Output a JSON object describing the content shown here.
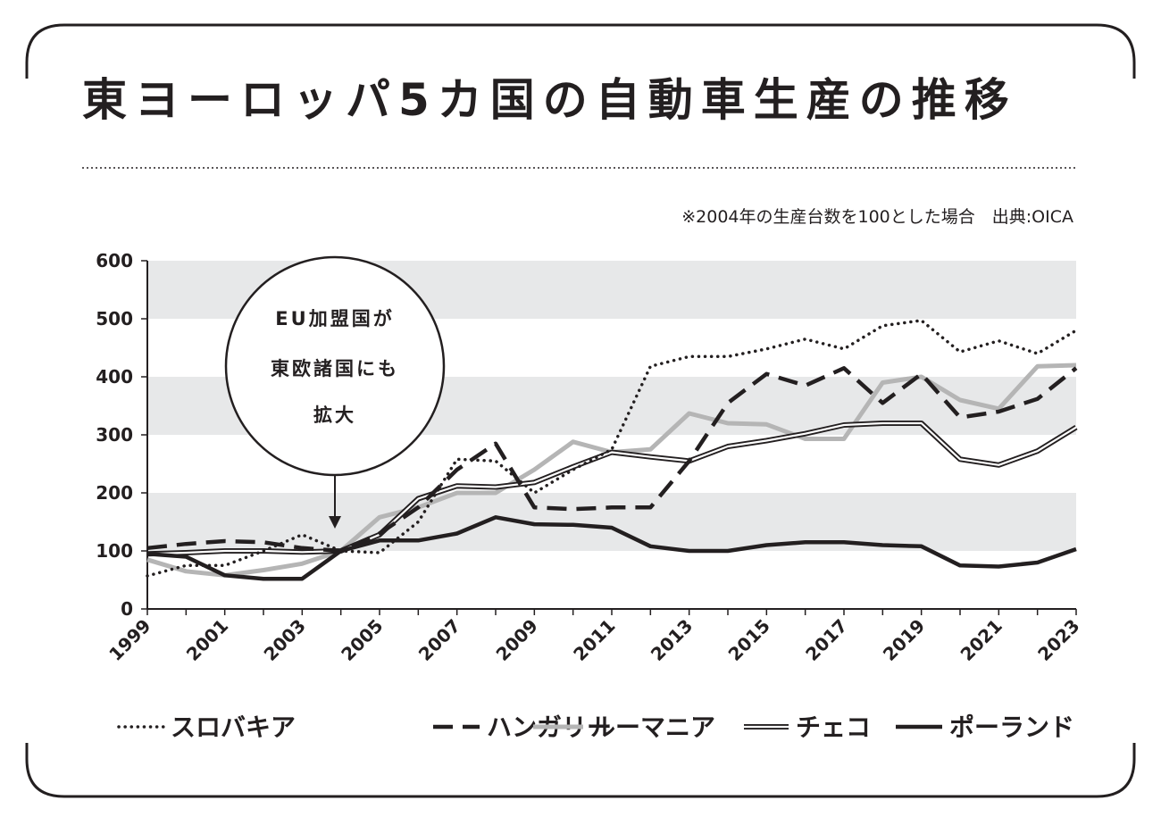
{
  "title": "東ヨーロッパ5カ国の自動車生産の推移",
  "note": "※2004年の生産台数を100とした場合　出典:OICA",
  "callout": {
    "lines": [
      "EU加盟国が",
      "東欧諸国にも",
      "拡大"
    ],
    "year": 2004
  },
  "colors": {
    "ink": "#231f20",
    "gray_series": "#b5b5b5",
    "band": "#e7e8e9"
  },
  "chart_data": {
    "type": "line",
    "title": "東ヨーロッパ5カ国の自動車生産の推移",
    "xlabel": "",
    "ylabel": "",
    "ylim": [
      0,
      600
    ],
    "yticks": [
      0,
      100,
      200,
      300,
      400,
      500,
      600
    ],
    "x": [
      1999,
      2000,
      2001,
      2002,
      2003,
      2004,
      2005,
      2006,
      2007,
      2008,
      2009,
      2010,
      2011,
      2012,
      2013,
      2014,
      2015,
      2016,
      2017,
      2018,
      2019,
      2020,
      2021,
      2022,
      2023
    ],
    "xtick_labels": [
      "1999",
      "2001",
      "2003",
      "2005",
      "2007",
      "2009",
      "2011",
      "2013",
      "2015",
      "2017",
      "2019",
      "2021",
      "2023"
    ],
    "series": [
      {
        "name": "スロバキア",
        "style": "dotted",
        "values": [
          57,
          75,
          75,
          100,
          128,
          100,
          97,
          150,
          258,
          255,
          200,
          240,
          275,
          418,
          435,
          435,
          448,
          465,
          448,
          488,
          497,
          443,
          462,
          440,
          480
        ]
      },
      {
        "name": "ハンガリー",
        "style": "dashed",
        "values": [
          105,
          112,
          117,
          115,
          105,
          100,
          130,
          175,
          240,
          285,
          175,
          172,
          175,
          175,
          255,
          355,
          405,
          385,
          415,
          355,
          405,
          330,
          340,
          362,
          415
        ]
      },
      {
        "name": "ルーマニア",
        "style": "gray",
        "values": [
          85,
          65,
          58,
          67,
          78,
          100,
          158,
          175,
          200,
          200,
          240,
          288,
          270,
          275,
          337,
          320,
          318,
          293,
          293,
          390,
          400,
          360,
          345,
          418,
          420
        ]
      },
      {
        "name": "チェコ",
        "style": "double",
        "values": [
          95,
          97,
          100,
          100,
          98,
          100,
          128,
          190,
          212,
          210,
          218,
          245,
          270,
          262,
          255,
          280,
          290,
          302,
          317,
          320,
          320,
          258,
          248,
          272,
          313
        ]
      },
      {
        "name": "ポーランド",
        "style": "thick",
        "values": [
          95,
          90,
          58,
          52,
          52,
          100,
          118,
          118,
          130,
          158,
          146,
          145,
          140,
          108,
          100,
          100,
          110,
          115,
          115,
          110,
          108,
          75,
          73,
          80,
          103
        ]
      }
    ],
    "grid_bands": [
      [
        100,
        200
      ],
      [
        300,
        400
      ],
      [
        500,
        600
      ]
    ],
    "legend": [
      "スロバキア",
      "ハンガリー",
      "ルーマニア",
      "チェコ",
      "ポーランド"
    ],
    "legend_position": "bottom"
  }
}
